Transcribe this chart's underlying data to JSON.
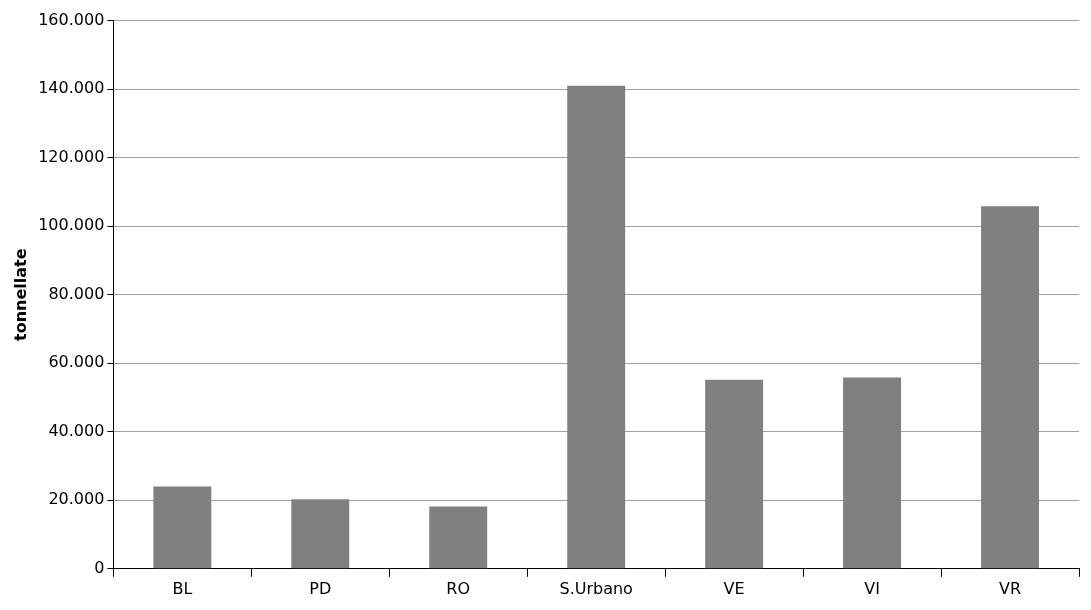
{
  "chart_data": {
    "type": "bar",
    "ylabel": "tonnellate",
    "categories": [
      "BL",
      "PD",
      "RO",
      "S.Urbano",
      "VE",
      "VI",
      "VR"
    ],
    "values": [
      24000,
      20300,
      18200,
      141000,
      55200,
      55800,
      105800
    ],
    "color": "#808080",
    "ylim": [
      0,
      160000
    ],
    "yticks": [
      {
        "value": 0,
        "label": "0"
      },
      {
        "value": 20000,
        "label": "20.000"
      },
      {
        "value": 40000,
        "label": "40.000"
      },
      {
        "value": 60000,
        "label": "60.000"
      },
      {
        "value": 80000,
        "label": "80.000"
      },
      {
        "value": 100000,
        "label": "100.000"
      },
      {
        "value": 120000,
        "label": "120.000"
      },
      {
        "value": 140000,
        "label": "140.000"
      },
      {
        "value": 160000,
        "label": "160.000"
      }
    ],
    "grid": "y",
    "legend": false
  }
}
